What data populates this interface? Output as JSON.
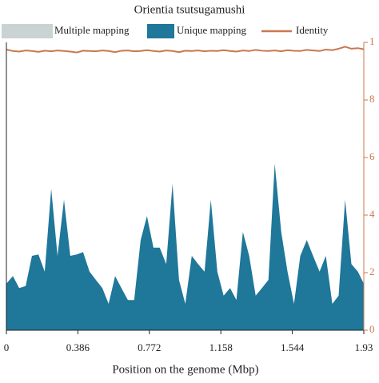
{
  "chart_data": {
    "type": "area",
    "title": "Orientia tsutsugamushi",
    "x_label": "Position on the genome (Mbp)",
    "x": [
      0,
      0.035,
      0.069,
      0.104,
      0.138,
      0.173,
      0.207,
      0.242,
      0.276,
      0.311,
      0.345,
      0.38,
      0.414,
      0.449,
      0.483,
      0.518,
      0.552,
      0.587,
      0.621,
      0.656,
      0.69,
      0.725,
      0.759,
      0.794,
      0.828,
      0.863,
      0.897,
      0.932,
      0.966,
      1.001,
      1.035,
      1.07,
      1.104,
      1.139,
      1.173,
      1.208,
      1.242,
      1.277,
      1.311,
      1.346,
      1.38,
      1.415,
      1.449,
      1.484,
      1.518,
      1.553,
      1.587,
      1.622,
      1.656,
      1.691,
      1.725,
      1.76,
      1.794,
      1.829,
      1.863,
      1.898,
      1.93
    ],
    "xlim": [
      0,
      1.93
    ],
    "xticks": [
      0,
      0.386,
      0.772,
      1.158,
      1.544,
      1.93
    ],
    "ylim": [
      0,
      6
    ],
    "y2lim": [
      0,
      1
    ],
    "y2ticks": [
      0,
      {
        "value": 0.2,
        "label": "2"
      },
      {
        "value": 0.4,
        "label": "4"
      },
      {
        "value": 0.6,
        "label": "6"
      },
      {
        "value": 0.8,
        "label": "8"
      },
      1
    ],
    "series": [
      {
        "name": "Multiple mapping",
        "color": "#c9d3d3",
        "values": [
          null,
          null,
          null,
          null,
          null,
          null,
          null,
          null,
          null,
          null,
          null,
          null,
          null,
          null,
          null,
          null,
          null,
          null,
          null,
          null,
          null,
          null,
          null,
          null,
          null,
          null,
          null,
          null,
          null,
          null,
          null,
          null,
          null,
          null,
          null,
          null,
          null,
          null,
          null,
          null,
          null,
          null,
          null,
          null,
          null,
          null,
          null,
          null,
          null,
          null,
          null,
          null,
          null,
          null,
          null,
          null,
          null
        ]
      },
      {
        "name": "Unique mapping",
        "color": "#1f7799",
        "values": [
          0.97,
          1.13,
          0.88,
          0.92,
          1.55,
          1.58,
          1.22,
          2.95,
          1.55,
          2.72,
          1.55,
          1.58,
          1.63,
          1.22,
          1.05,
          0.88,
          0.55,
          1.13,
          0.88,
          0.63,
          0.63,
          1.88,
          2.38,
          1.72,
          1.72,
          1.38,
          3.05,
          1.05,
          0.55,
          1.55,
          1.38,
          1.22,
          2.72,
          1.22,
          0.72,
          0.88,
          0.63,
          2.05,
          1.55,
          0.72,
          0.88,
          1.05,
          3.47,
          2.05,
          1.22,
          0.55,
          1.55,
          1.88,
          1.55,
          1.22,
          1.55,
          0.55,
          0.72,
          2.72,
          1.38,
          1.22,
          0.97
        ]
      },
      {
        "name": "Identity",
        "color": "#c87851",
        "axis": "y2",
        "values": [
          0.975,
          0.97,
          0.968,
          0.972,
          0.97,
          0.967,
          0.971,
          0.969,
          0.972,
          0.97,
          0.968,
          0.965,
          0.971,
          0.97,
          0.969,
          0.972,
          0.97,
          0.966,
          0.971,
          0.972,
          0.969,
          0.97,
          0.973,
          0.97,
          0.968,
          0.972,
          0.97,
          0.966,
          0.971,
          0.97,
          0.972,
          0.969,
          0.971,
          0.97,
          0.973,
          0.97,
          0.968,
          0.972,
          0.97,
          0.974,
          0.971,
          0.97,
          0.972,
          0.969,
          0.973,
          0.971,
          0.97,
          0.974,
          0.972,
          0.97,
          0.975,
          0.973,
          0.978,
          0.985,
          0.978,
          0.98,
          0.976
        ]
      }
    ]
  }
}
